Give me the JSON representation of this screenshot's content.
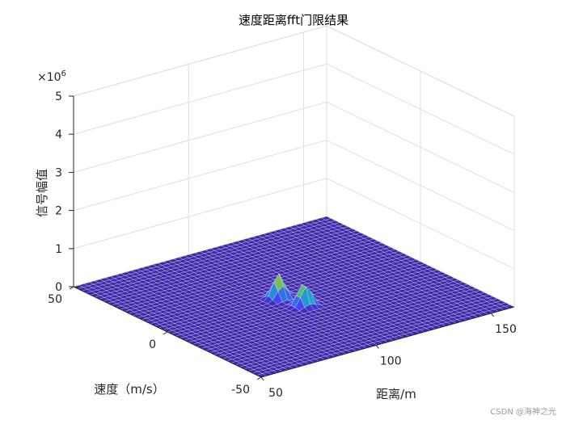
{
  "chart_data": {
    "type": "surface",
    "title": "速度距离fft门限结果",
    "xlabel": "距离/m",
    "ylabel": "速度（m/s）",
    "zlabel": "信号幅值",
    "z_exponent_label": "×10",
    "z_exponent_power": "6",
    "xlim": [
      50,
      160
    ],
    "ylim": [
      -50,
      50
    ],
    "zlim": [
      0,
      5000000
    ],
    "x_ticks": [
      50,
      100,
      150
    ],
    "x_tick_labels": [
      "50",
      "100",
      "150"
    ],
    "y_ticks": [
      -50,
      0,
      50
    ],
    "y_tick_labels": [
      "-50",
      "0",
      "50"
    ],
    "z_ticks": [
      0,
      1000000,
      2000000,
      3000000,
      4000000,
      5000000
    ],
    "z_tick_labels": [
      "0",
      "1",
      "2",
      "3",
      "4",
      "5"
    ],
    "grid": true,
    "colormap": "parula",
    "colormap_stops": [
      "#3e26a8",
      "#4743f6",
      "#2c7ce0",
      "#1fa8c6",
      "#40bc8b",
      "#a2bf3a",
      "#f4ba3b",
      "#f9fb15"
    ],
    "edge_color": "#ffffff",
    "peaks": [
      {
        "range_m": 100,
        "velocity_mps": 2,
        "amplitude": 650000
      },
      {
        "range_m": 103,
        "velocity_mps": -8,
        "amplitude": 620000
      }
    ],
    "noise_floor": 0
  },
  "watermark": "CSDN @海神之光"
}
